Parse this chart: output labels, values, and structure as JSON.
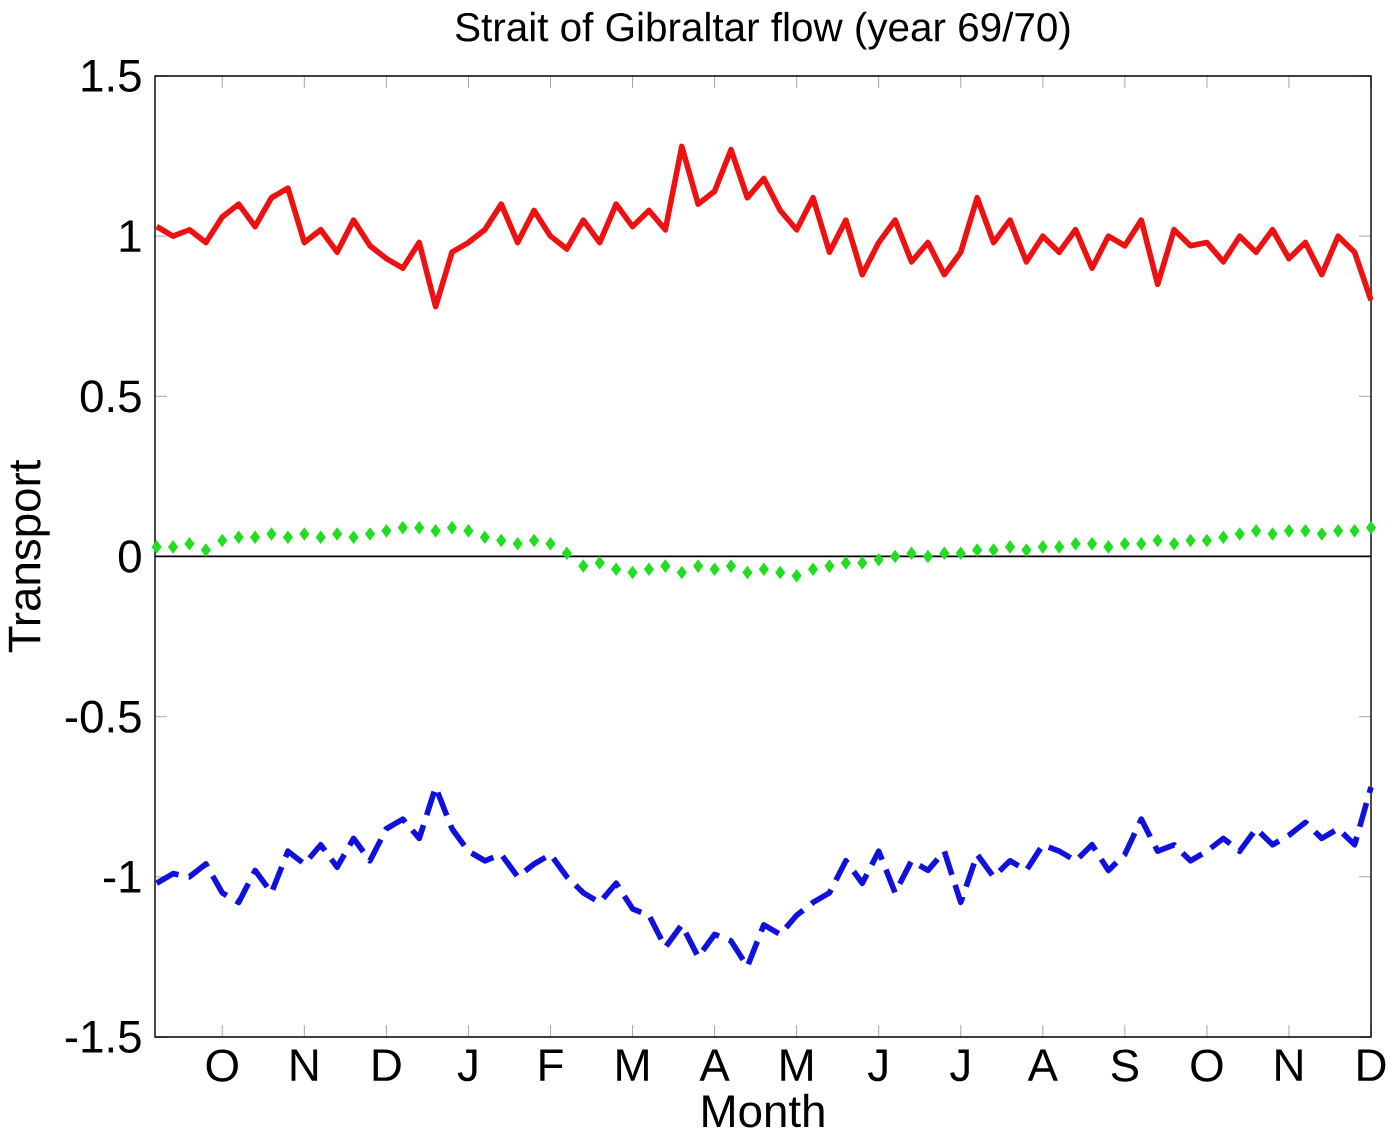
{
  "chart_data": {
    "type": "line",
    "title": "Strait of Gibraltar flow (year 69/70)",
    "xlabel": "Month",
    "ylabel": "Transport",
    "categories": [
      null,
      null,
      null,
      null,
      "O",
      null,
      null,
      null,
      null,
      "N",
      null,
      null,
      null,
      null,
      "D",
      null,
      null,
      null,
      null,
      "J",
      null,
      null,
      null,
      null,
      "F",
      null,
      null,
      null,
      null,
      "M",
      null,
      null,
      null,
      null,
      "A",
      null,
      null,
      null,
      null,
      "M",
      null,
      null,
      null,
      null,
      "J",
      null,
      null,
      null,
      null,
      "J",
      null,
      null,
      null,
      null,
      "A",
      null,
      null,
      null,
      null,
      "S",
      null,
      null,
      null,
      null,
      "O",
      null,
      null,
      null,
      null,
      "N",
      null,
      null,
      null,
      null,
      "D"
    ],
    "series": [
      {
        "color": "#ee1111",
        "line_style": "solid",
        "values": [
          1.03,
          1.0,
          1.02,
          0.98,
          1.06,
          1.1,
          1.03,
          1.12,
          1.15,
          0.98,
          1.02,
          0.95,
          1.05,
          0.97,
          0.93,
          0.9,
          0.98,
          0.78,
          0.95,
          0.98,
          1.02,
          1.1,
          0.98,
          1.08,
          1.0,
          0.96,
          1.05,
          0.98,
          1.1,
          1.03,
          1.08,
          1.02,
          1.28,
          1.1,
          1.14,
          1.27,
          1.12,
          1.18,
          1.08,
          1.02,
          1.12,
          0.95,
          1.05,
          0.88,
          0.98,
          1.05,
          0.92,
          0.98,
          0.88,
          0.95,
          1.12,
          0.98,
          1.05,
          0.92,
          1.0,
          0.95,
          1.02,
          0.9,
          1.0,
          0.97,
          1.05,
          0.85,
          1.02,
          0.97,
          0.98,
          0.92,
          1.0,
          0.95,
          1.02,
          0.93,
          0.98,
          0.88,
          1.0,
          0.95,
          0.8
        ]
      },
      {
        "type": "scatter",
        "marker": "diamond",
        "color": "#22dd22",
        "values": [
          0.03,
          0.03,
          0.04,
          0.02,
          0.05,
          0.06,
          0.06,
          0.07,
          0.06,
          0.07,
          0.06,
          0.07,
          0.06,
          0.07,
          0.08,
          0.09,
          0.09,
          0.08,
          0.09,
          0.08,
          0.06,
          0.05,
          0.04,
          0.05,
          0.04,
          0.01,
          -0.03,
          -0.02,
          -0.04,
          -0.05,
          -0.04,
          -0.03,
          -0.05,
          -0.03,
          -0.04,
          -0.03,
          -0.05,
          -0.04,
          -0.05,
          -0.06,
          -0.04,
          -0.03,
          -0.02,
          -0.02,
          -0.01,
          0.0,
          0.01,
          0.0,
          0.01,
          0.01,
          0.02,
          0.02,
          0.03,
          0.02,
          0.03,
          0.03,
          0.04,
          0.04,
          0.03,
          0.04,
          0.04,
          0.05,
          0.04,
          0.05,
          0.05,
          0.06,
          0.07,
          0.08,
          0.07,
          0.08,
          0.08,
          0.07,
          0.08,
          0.08,
          0.09
        ]
      },
      {
        "color": "#1111dd",
        "line_style": "dashed",
        "values": [
          -1.02,
          -0.99,
          -1.0,
          -0.96,
          -1.05,
          -1.08,
          -0.98,
          -1.05,
          -0.92,
          -0.96,
          -0.9,
          -0.97,
          -0.88,
          -0.95,
          -0.85,
          -0.82,
          -0.88,
          -0.72,
          -0.85,
          -0.92,
          -0.95,
          -0.93,
          -1.0,
          -0.96,
          -0.93,
          -1.0,
          -1.05,
          -1.08,
          -1.02,
          -1.1,
          -1.12,
          -1.22,
          -1.15,
          -1.25,
          -1.18,
          -1.2,
          -1.28,
          -1.15,
          -1.18,
          -1.12,
          -1.08,
          -1.05,
          -0.95,
          -1.02,
          -0.92,
          -1.05,
          -0.95,
          -0.98,
          -0.92,
          -1.08,
          -0.93,
          -1.0,
          -0.95,
          -0.98,
          -0.9,
          -0.92,
          -0.95,
          -0.9,
          -0.98,
          -0.93,
          -0.82,
          -0.92,
          -0.9,
          -0.95,
          -0.92,
          -0.88,
          -0.92,
          -0.85,
          -0.9,
          -0.87,
          -0.83,
          -0.88,
          -0.85,
          -0.9,
          -0.72
        ]
      }
    ],
    "ylim": [
      -1.5,
      1.5
    ],
    "yticks": [
      -1.5,
      -1,
      -0.5,
      0,
      0.5,
      1,
      1.5
    ],
    "ref_lines": [
      {
        "axis": "y",
        "value": 0,
        "color": "#000000"
      }
    ]
  }
}
